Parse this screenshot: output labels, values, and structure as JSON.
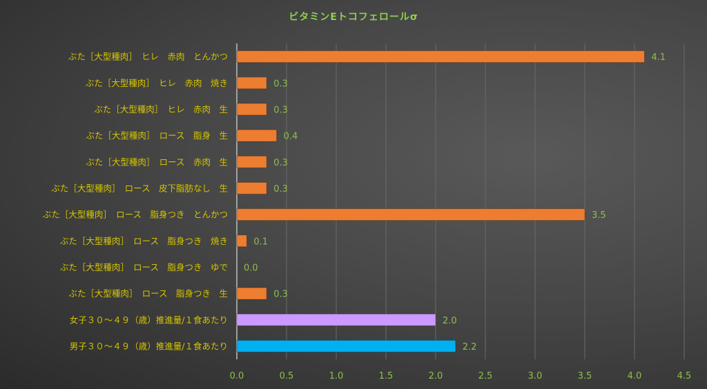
{
  "chart_data": {
    "type": "bar",
    "orientation": "horizontal",
    "title": "ビタミンEトコフェロールσ",
    "xlabel": "",
    "ylabel": "",
    "xlim": [
      0,
      4.5
    ],
    "xticks": [
      "0.0",
      "0.5",
      "1.0",
      "1.5",
      "2.0",
      "2.5",
      "3.0",
      "3.5",
      "4.0",
      "4.5"
    ],
    "grid": "vertical",
    "categories": [
      "ぶた［大型種肉］　ヒレ　赤肉　とんかつ",
      "ぶた［大型種肉］　ヒレ　赤肉　焼き",
      "ぶた［大型種肉］　ヒレ　赤肉　生",
      "ぶた［大型種肉］　ロース　脂身　生",
      "ぶた［大型種肉］　ロース　赤肉　生",
      "ぶた［大型種肉］　ロース　皮下脂肪なし　生",
      "ぶた［大型種肉］　ロース　脂身つき　とんかつ",
      "ぶた［大型種肉］　ロース　脂身つき　焼き",
      "ぶた［大型種肉］　ロース　脂身つき　ゆで",
      "ぶた［大型種肉］　ロース　脂身つき　生",
      "女子３０～４９（歳）推進量/１食あたり",
      "男子３０～４９（歳）推進量/１食あたり"
    ],
    "values": [
      4.1,
      0.3,
      0.3,
      0.4,
      0.3,
      0.3,
      3.5,
      0.1,
      0.0,
      0.3,
      2.0,
      2.2
    ],
    "labels": [
      "4.1",
      "0.3",
      "0.3",
      "0.4",
      "0.3",
      "0.3",
      "3.5",
      "0.1",
      "0.0",
      "0.3",
      "2.0",
      "2.2"
    ],
    "colors": [
      "#ed7d31",
      "#ed7d31",
      "#ed7d31",
      "#ed7d31",
      "#ed7d31",
      "#ed7d31",
      "#ed7d31",
      "#ed7d31",
      "#ed7d31",
      "#ed7d31",
      "#cc99ff",
      "#00b0f0"
    ]
  }
}
